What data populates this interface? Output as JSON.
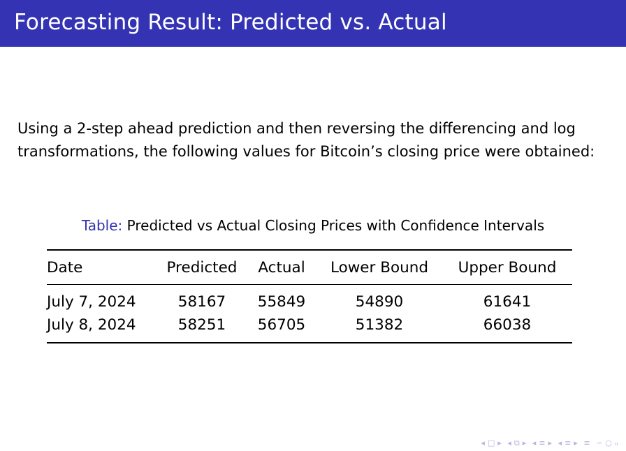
{
  "slide": {
    "title": "Forecasting Result: Predicted vs. Actual",
    "intro": "Using a 2-step ahead prediction and then reversing the differencing and log transformations, the following values for Bitcoin’s closing price were obtained:"
  },
  "table": {
    "caption_prefix": "Table:",
    "caption_text": "Predicted vs Actual Closing Prices with Confidence Intervals",
    "headers": {
      "date": "Date",
      "predicted": "Predicted",
      "actual": "Actual",
      "lower": "Lower Bound",
      "upper": "Upper Bound"
    },
    "rows": [
      {
        "date": "July 7, 2024",
        "predicted": "58167",
        "actual": "55849",
        "lower": "54890",
        "upper": "61641"
      },
      {
        "date": "July 8, 2024",
        "predicted": "58251",
        "actual": "56705",
        "lower": "51382",
        "upper": "66038"
      }
    ]
  },
  "nav": {
    "color": "#b5b5df",
    "icons": {
      "prev_frame": "◂",
      "frame": "□",
      "next_frame": "▸",
      "prev_subsection": "◂",
      "subsection": "⧉",
      "next_subsection": "▸",
      "prev_section": "◂",
      "section": "≡",
      "next_section": "▸",
      "prev_part": "◂",
      "part": "≡",
      "next_part": "▸",
      "toc": "≡",
      "search": "∽",
      "zoom": "○",
      "find": "ℴ"
    }
  },
  "colors": {
    "title_bar": "#3333b3",
    "title_text": "#ffffff",
    "caption_prefix": "#3333b3"
  }
}
